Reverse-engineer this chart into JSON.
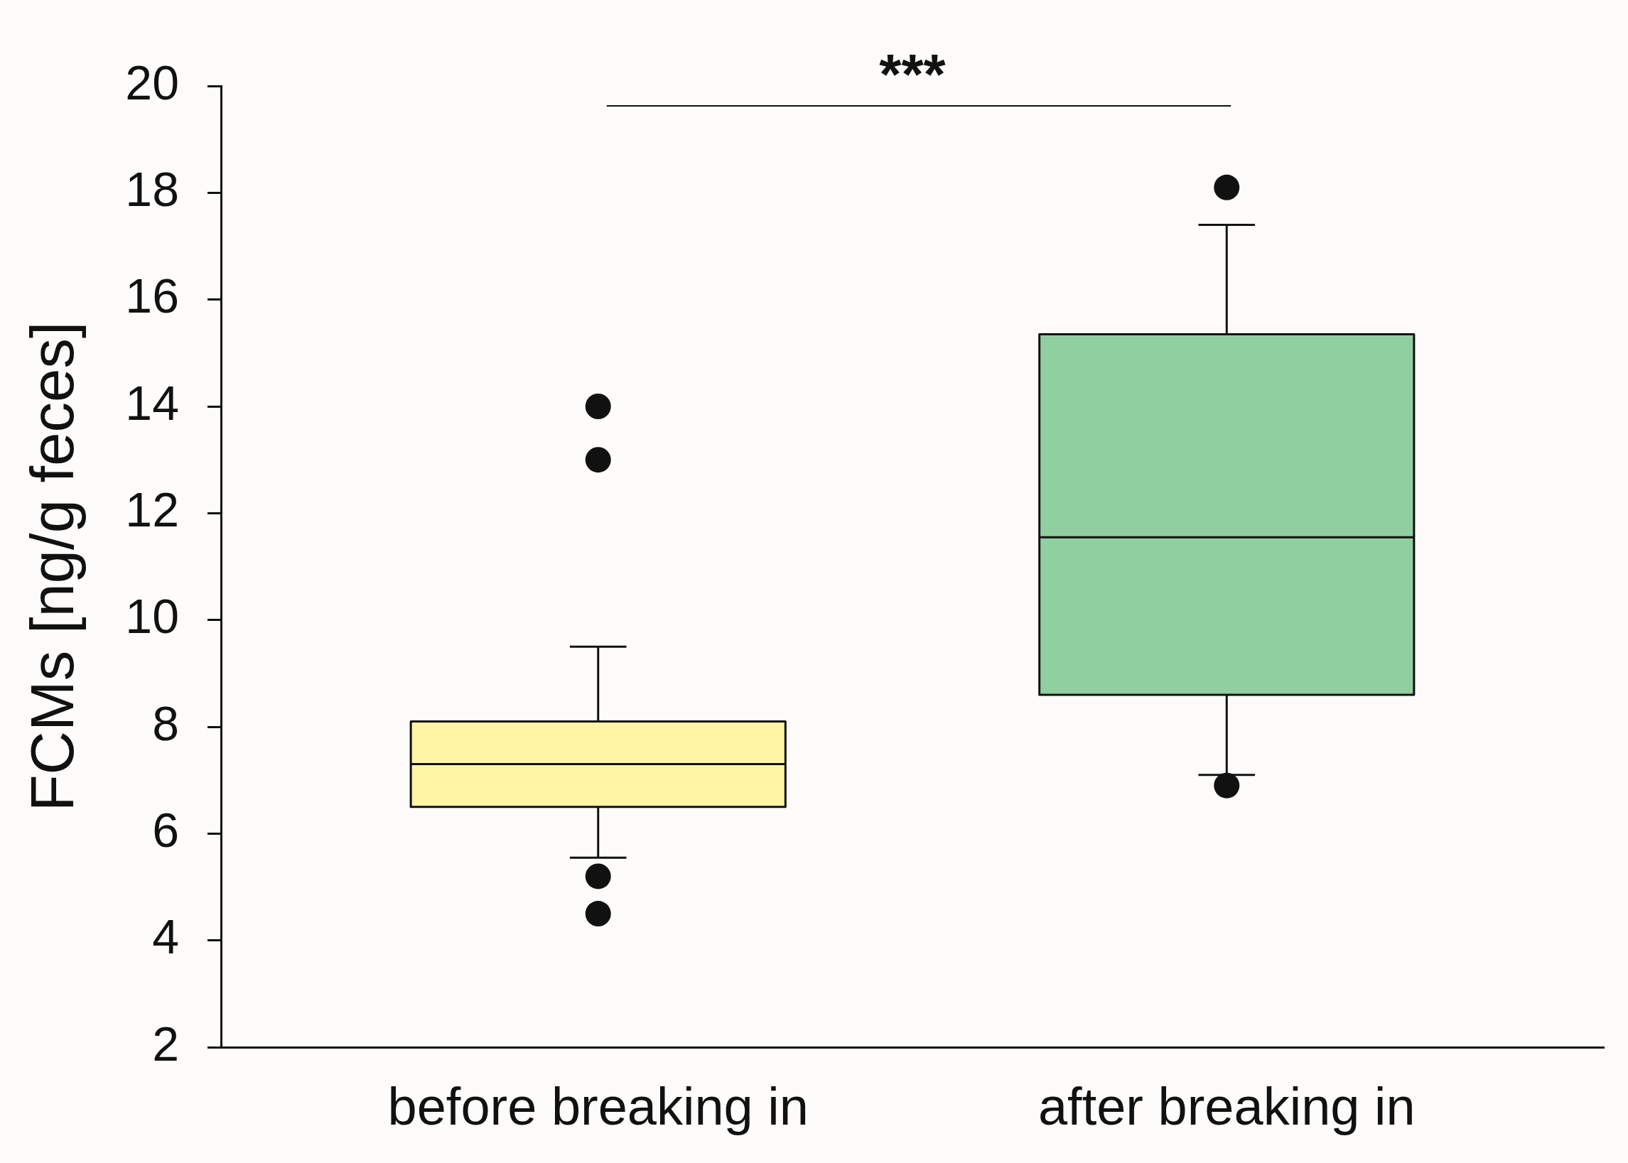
{
  "chart_data": {
    "type": "box",
    "ylabel": "FCMs [ng/g feces]",
    "categories": [
      "before breaking in",
      "after breaking in"
    ],
    "boxes": [
      {
        "low": 5.55,
        "q1": 6.5,
        "median": 7.3,
        "q3": 8.1,
        "high": 9.5,
        "outliers": [
          14.0,
          13.0,
          5.2,
          4.5
        ]
      },
      {
        "low": 7.1,
        "q1": 8.6,
        "median": 11.55,
        "q3": 15.35,
        "high": 17.4,
        "outliers": [
          18.1,
          6.9
        ]
      }
    ],
    "colors": [
      "#fff5a5",
      "#90cf9f"
    ],
    "ylim": [
      2,
      20
    ],
    "yticks": [
      2,
      4,
      6,
      8,
      10,
      12,
      14,
      16,
      18,
      20
    ],
    "annotations": [
      "***"
    ]
  }
}
